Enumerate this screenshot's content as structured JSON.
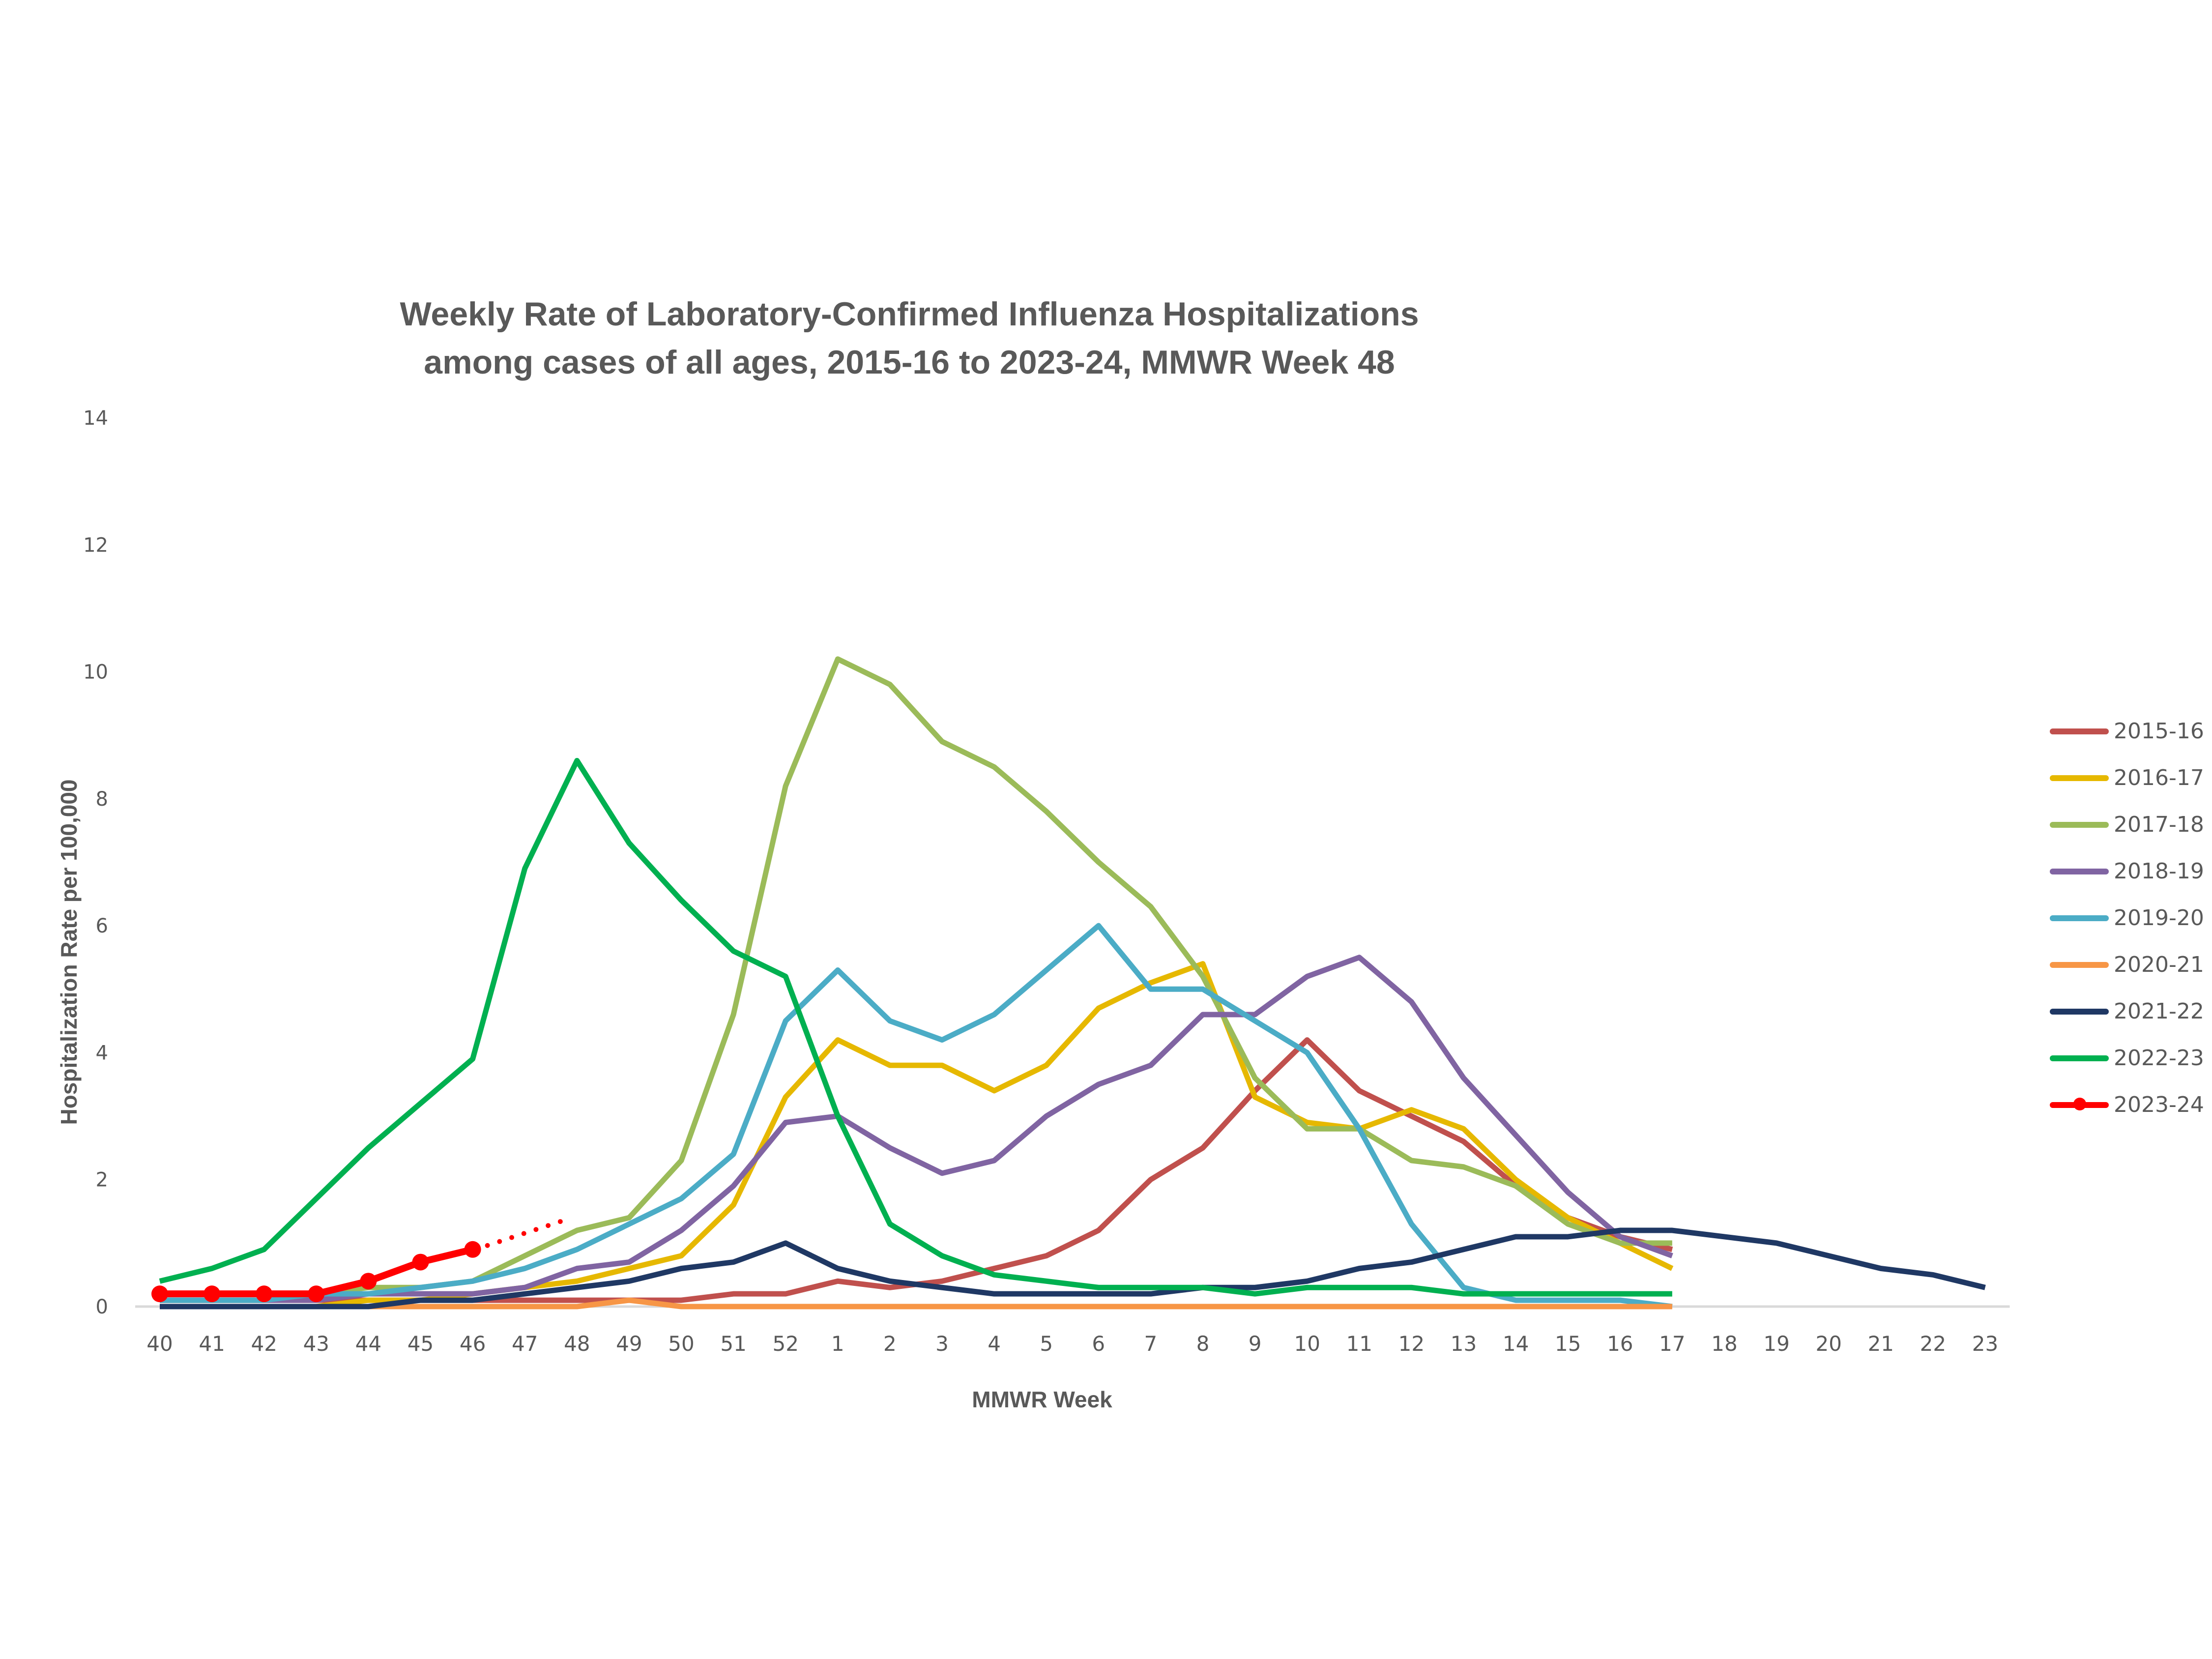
{
  "chart_data": {
    "type": "line",
    "title": "Weekly Rate of Laboratory-Confirmed Influenza Hospitalizations among cases of all ages, 2015-16 to 2023-24, MMWR Week 48",
    "title_lines": [
      "Weekly Rate of Laboratory-Confirmed Influenza Hospitalizations",
      "among cases of all ages, 2015-16 to 2023-24, MMWR Week 48"
    ],
    "xlabel": "MMWR Week",
    "ylabel": "Hospitalization Rate per 100,000",
    "ylim": [
      0,
      14
    ],
    "yticks": [
      0,
      2,
      4,
      6,
      8,
      10,
      12,
      14
    ],
    "grid": false,
    "legend_position": "right",
    "categories": [
      "40",
      "41",
      "42",
      "43",
      "44",
      "45",
      "46",
      "47",
      "48",
      "49",
      "50",
      "51",
      "52",
      "1",
      "2",
      "3",
      "4",
      "5",
      "6",
      "7",
      "8",
      "9",
      "10",
      "11",
      "12",
      "13",
      "14",
      "15",
      "16",
      "17",
      "18",
      "19",
      "20",
      "21",
      "22",
      "23"
    ],
    "series": [
      {
        "name": "2015-16",
        "color": "#C0504D",
        "values": [
          0.1,
          0.1,
          0.1,
          0.1,
          0.1,
          0.1,
          0.1,
          0.1,
          0.1,
          0.1,
          0.1,
          0.2,
          0.2,
          0.4,
          0.3,
          0.4,
          0.6,
          0.8,
          1.2,
          2.0,
          2.5,
          3.4,
          4.2,
          3.4,
          3.0,
          2.6,
          1.9,
          1.4,
          1.1,
          0.9
        ]
      },
      {
        "name": "2016-17",
        "color": "#E6B800",
        "values": [
          0.0,
          0.0,
          0.0,
          0.0,
          0.1,
          0.1,
          0.2,
          0.3,
          0.4,
          0.6,
          0.8,
          1.6,
          3.3,
          4.2,
          3.8,
          3.8,
          3.4,
          3.8,
          4.7,
          5.1,
          5.4,
          3.3,
          2.9,
          2.8,
          3.1,
          2.8,
          2.0,
          1.4,
          1.0,
          0.6
        ]
      },
      {
        "name": "2017-18",
        "color": "#9BBB59",
        "values": [
          0.1,
          0.1,
          0.1,
          0.2,
          0.3,
          0.3,
          0.4,
          0.8,
          1.2,
          1.4,
          2.3,
          4.6,
          8.2,
          10.2,
          9.8,
          8.9,
          8.5,
          7.8,
          7.0,
          6.3,
          5.2,
          3.6,
          2.8,
          2.8,
          2.3,
          2.2,
          1.9,
          1.3,
          1.0,
          1.0
        ]
      },
      {
        "name": "2018-19",
        "color": "#8064A2",
        "values": [
          0.1,
          0.1,
          0.1,
          0.1,
          0.2,
          0.2,
          0.2,
          0.3,
          0.6,
          0.7,
          1.2,
          1.9,
          2.9,
          3.0,
          2.5,
          2.1,
          2.3,
          3.0,
          3.5,
          3.8,
          4.6,
          4.6,
          5.2,
          5.5,
          4.8,
          3.6,
          2.7,
          1.8,
          1.1,
          0.8
        ]
      },
      {
        "name": "2019-20",
        "color": "#4BACC6",
        "values": [
          0.1,
          0.1,
          0.1,
          0.2,
          0.2,
          0.3,
          0.4,
          0.6,
          0.9,
          1.3,
          1.7,
          2.4,
          4.5,
          5.3,
          4.5,
          4.2,
          4.6,
          5.3,
          6.0,
          5.0,
          5.0,
          4.5,
          4.0,
          2.8,
          1.3,
          0.3,
          0.1,
          0.1,
          0.1,
          0.0
        ]
      },
      {
        "name": "2020-21",
        "color": "#F79646",
        "values": [
          0.0,
          0.0,
          0.0,
          0.0,
          0.0,
          0.0,
          0.0,
          0.0,
          0.0,
          0.1,
          0.0,
          0.0,
          0.0,
          0.0,
          0.0,
          0.0,
          0.0,
          0.0,
          0.0,
          0.0,
          0.0,
          0.0,
          0.0,
          0.0,
          0.0,
          0.0,
          0.0,
          0.0,
          0.0,
          0.0
        ]
      },
      {
        "name": "2021-22",
        "color": "#1F3864",
        "values": [
          0.0,
          0.0,
          0.0,
          0.0,
          0.0,
          0.1,
          0.1,
          0.2,
          0.3,
          0.4,
          0.6,
          0.7,
          1.0,
          0.6,
          0.4,
          0.3,
          0.2,
          0.2,
          0.2,
          0.2,
          0.3,
          0.3,
          0.4,
          0.6,
          0.7,
          0.9,
          1.1,
          1.1,
          1.2,
          1.2,
          1.1,
          1.0,
          0.8,
          0.6,
          0.5,
          0.3
        ]
      },
      {
        "name": "2022-23",
        "color": "#00B050",
        "values": [
          0.4,
          0.6,
          0.9,
          1.7,
          2.5,
          3.2,
          3.9,
          6.9,
          8.6,
          7.3,
          6.4,
          5.6,
          5.2,
          3.0,
          1.3,
          0.8,
          0.5,
          0.4,
          0.3,
          0.3,
          0.3,
          0.2,
          0.3,
          0.3,
          0.3,
          0.2,
          0.2,
          0.2,
          0.2,
          0.2
        ]
      },
      {
        "name": "2023-24",
        "color": "#FF0000",
        "markers": true,
        "values": [
          0.2,
          0.2,
          0.2,
          0.2,
          0.4,
          0.7,
          0.9
        ],
        "projection": {
          "style": "dotted",
          "from_week": "46",
          "to_week": "48",
          "values": [
            0.9,
            1.4
          ]
        }
      }
    ]
  }
}
